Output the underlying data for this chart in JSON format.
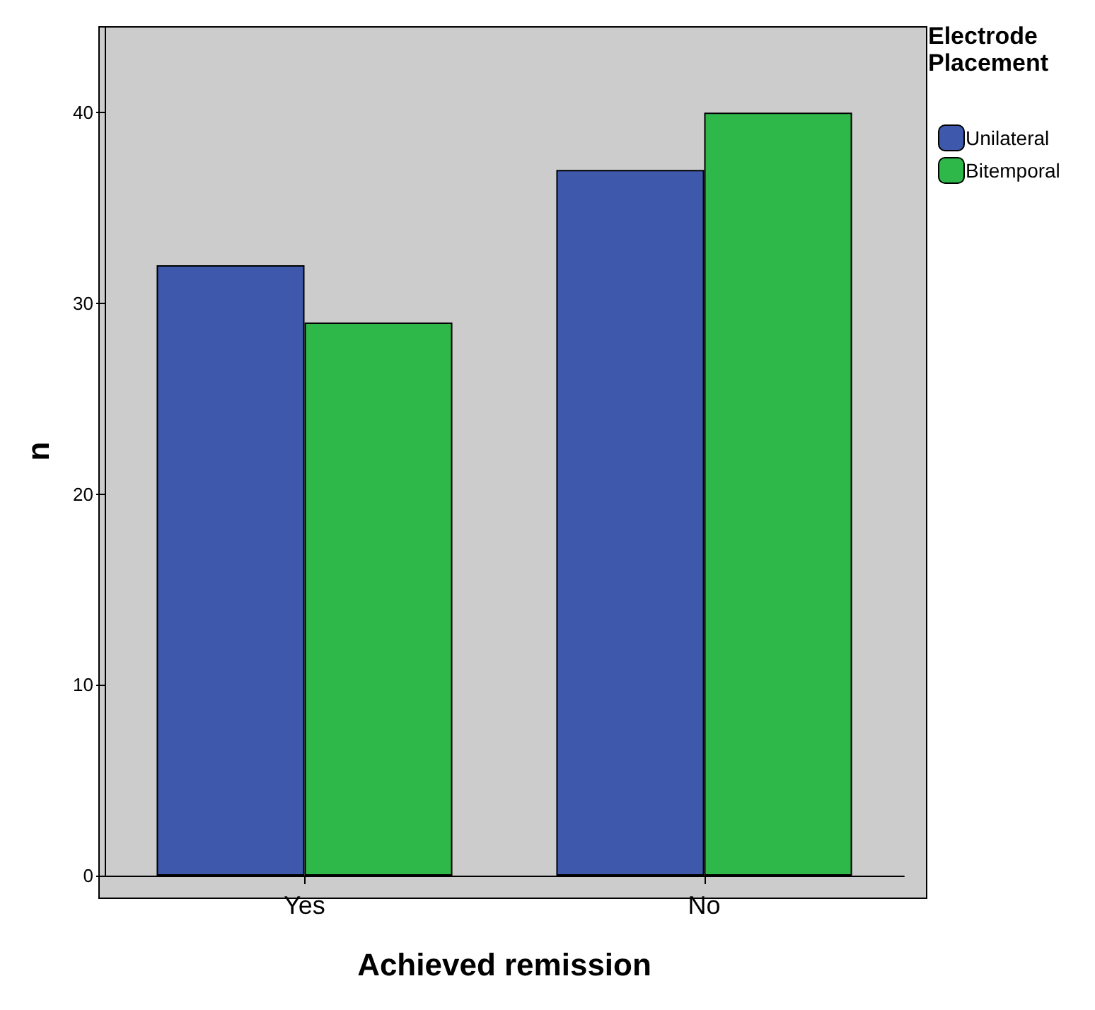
{
  "chart_data": {
    "type": "bar",
    "xlabel": "Achieved remission",
    "ylabel": "n",
    "legend_title": "Electrode Placement",
    "categories": [
      "Yes",
      "No"
    ],
    "series": [
      {
        "name": "Unilateral",
        "color": "#3e58ac",
        "values": [
          32,
          37
        ]
      },
      {
        "name": "Bitemporal",
        "color": "#2fb84a",
        "values": [
          29,
          40
        ]
      }
    ],
    "ylim": [
      0,
      44.5
    ],
    "yticks": [
      0,
      10,
      20,
      30,
      40
    ],
    "grid": false,
    "legend": "right"
  }
}
